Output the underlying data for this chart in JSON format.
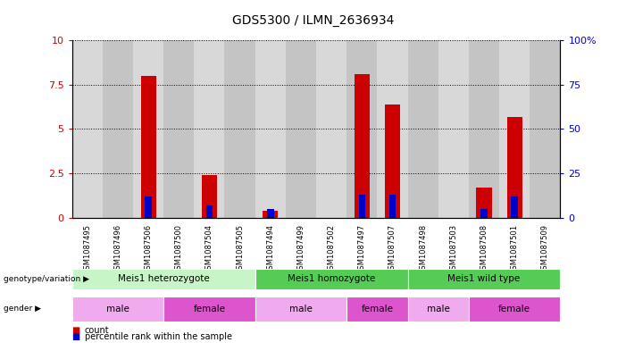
{
  "title": "GDS5300 / ILMN_2636934",
  "samples": [
    "GSM1087495",
    "GSM1087496",
    "GSM1087506",
    "GSM1087500",
    "GSM1087504",
    "GSM1087505",
    "GSM1087494",
    "GSM1087499",
    "GSM1087502",
    "GSM1087497",
    "GSM1087507",
    "GSM1087498",
    "GSM1087503",
    "GSM1087508",
    "GSM1087501",
    "GSM1087509"
  ],
  "count_values": [
    0,
    0,
    8.0,
    0,
    2.4,
    0,
    0.4,
    0,
    0,
    8.1,
    6.4,
    0,
    0,
    1.7,
    5.7,
    0
  ],
  "percentile_values": [
    0,
    0,
    12,
    0,
    7,
    0,
    5,
    0,
    0,
    13,
    13,
    0,
    0,
    5,
    12,
    0
  ],
  "ylim_left": [
    0,
    10
  ],
  "ylim_right": [
    0,
    100
  ],
  "yticks_left": [
    0,
    2.5,
    5,
    7.5,
    10
  ],
  "yticks_right": [
    0,
    25,
    50,
    75,
    100
  ],
  "count_color": "#cc0000",
  "percentile_color": "#0000cc",
  "left_ylabel_color": "#cc0000",
  "right_ylabel_color": "#0000cc",
  "legend_count_label": "count",
  "legend_percentile_label": "percentile rank within the sample",
  "geno_specs": [
    [
      "Meis1 heterozygote",
      0,
      6,
      "#c8f5c8"
    ],
    [
      "Meis1 homozygote",
      6,
      11,
      "#55cc55"
    ],
    [
      "Meis1 wild type",
      11,
      16,
      "#55cc55"
    ]
  ],
  "gender_specs": [
    [
      "male",
      0,
      3,
      "#f0aaee"
    ],
    [
      "female",
      3,
      6,
      "#dd55cc"
    ],
    [
      "male",
      6,
      9,
      "#f0aaee"
    ],
    [
      "female",
      9,
      11,
      "#dd55cc"
    ],
    [
      "male",
      11,
      13,
      "#f0aaee"
    ],
    [
      "female",
      13,
      16,
      "#dd55cc"
    ]
  ],
  "col_colors": [
    "#d8d8d8",
    "#c4c4c4"
  ]
}
